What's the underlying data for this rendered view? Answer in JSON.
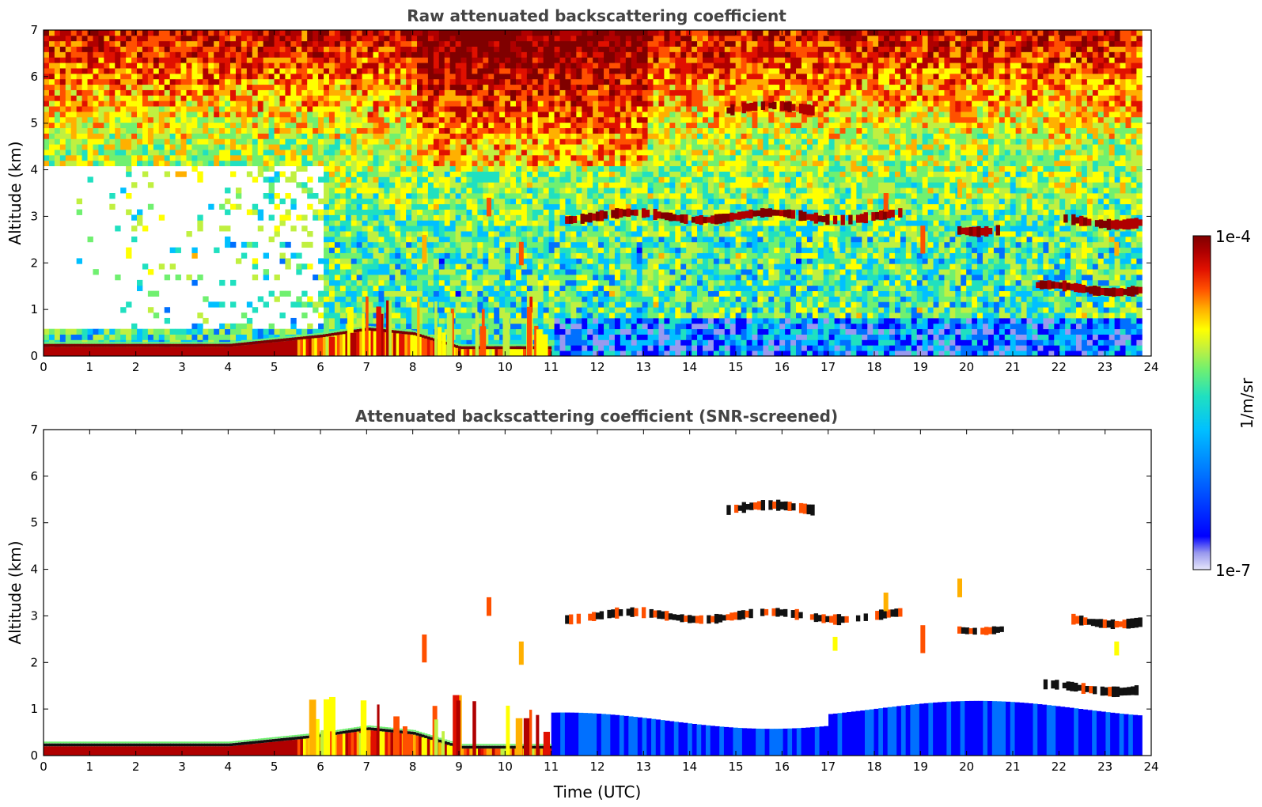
{
  "figure": {
    "colorbar": {
      "max_label": "1e-4",
      "min_label": "1e-7",
      "unit_label": "1/m/sr",
      "scale": "log",
      "range": [
        1e-07,
        0.0001
      ],
      "colormap": [
        "#e6e6fa",
        "#9999ee",
        "#0000ff",
        "#0070ff",
        "#00c0ff",
        "#20e0c0",
        "#70f070",
        "#c0f040",
        "#ffff00",
        "#ffb000",
        "#ff5000",
        "#e01000",
        "#b00000",
        "#800000"
      ]
    },
    "shared_xlabel": "Time (UTC)"
  },
  "chart_data": [
    {
      "type": "heatmap",
      "title": "Raw attenuated backscattering coefficient",
      "xlabel": "",
      "ylabel": "Altitude (km)",
      "xlim": [
        0,
        24
      ],
      "ylim": [
        0,
        7
      ],
      "x_ticks": [
        "0",
        "1",
        "2",
        "3",
        "4",
        "5",
        "6",
        "7",
        "8",
        "9",
        "10",
        "11",
        "12",
        "13",
        "14",
        "15",
        "16",
        "17",
        "18",
        "19",
        "20",
        "21",
        "22",
        "23",
        "24"
      ],
      "y_ticks": [
        "0",
        "1",
        "2",
        "3",
        "4",
        "5",
        "6",
        "7"
      ],
      "data_extent_x": [
        0,
        23.8
      ],
      "grid": false,
      "features": {
        "surface_layer": [
          [
            0,
            0.2
          ],
          [
            4,
            0.2
          ],
          [
            5,
            0.3
          ],
          [
            6,
            0.4
          ],
          [
            7,
            0.55
          ],
          [
            8,
            0.45
          ],
          [
            9,
            0.15
          ]
        ],
        "cloud_layers": [
          {
            "x": [
              11.3,
              18.6
            ],
            "y": 3.0
          },
          {
            "x": [
              19.8,
              20.8
            ],
            "y": 2.75
          },
          {
            "x": [
              22.1,
              23.8
            ],
            "y": 2.9
          },
          {
            "x": [
              14.8,
              16.7
            ],
            "y": 5.3
          },
          {
            "x": [
              21.5,
              23.8
            ],
            "y": 1.45
          }
        ],
        "noise": "high"
      }
    },
    {
      "type": "heatmap",
      "title": "Attenuated backscattering coefficient (SNR-screened)",
      "xlabel": "Time (UTC)",
      "ylabel": "Altitude (km)",
      "xlim": [
        0,
        24
      ],
      "ylim": [
        0,
        7
      ],
      "x_ticks": [
        "0",
        "1",
        "2",
        "3",
        "4",
        "5",
        "6",
        "7",
        "8",
        "9",
        "10",
        "11",
        "12",
        "13",
        "14",
        "15",
        "16",
        "17",
        "18",
        "19",
        "20",
        "21",
        "22",
        "23",
        "24"
      ],
      "y_ticks": [
        "0",
        "1",
        "2",
        "3",
        "4",
        "5",
        "6",
        "7"
      ],
      "data_extent_x": [
        0,
        23.8
      ],
      "grid": false,
      "features": {
        "surface_layer": [
          [
            0,
            0.2
          ],
          [
            4,
            0.2
          ],
          [
            5,
            0.3
          ],
          [
            6,
            0.4
          ],
          [
            7,
            0.55
          ],
          [
            8,
            0.45
          ],
          [
            9,
            0.15
          ]
        ],
        "cloud_layers": [
          {
            "x": [
              11.3,
              18.6
            ],
            "y": 3.0
          },
          {
            "x": [
              19.8,
              20.8
            ],
            "y": 2.75
          },
          {
            "x": [
              22.1,
              23.8
            ],
            "y": 2.9
          },
          {
            "x": [
              14.8,
              16.7
            ],
            "y": 5.3
          },
          {
            "x": [
              21.5,
              23.8
            ],
            "y": 1.45
          }
        ],
        "noise": "screened"
      }
    }
  ]
}
